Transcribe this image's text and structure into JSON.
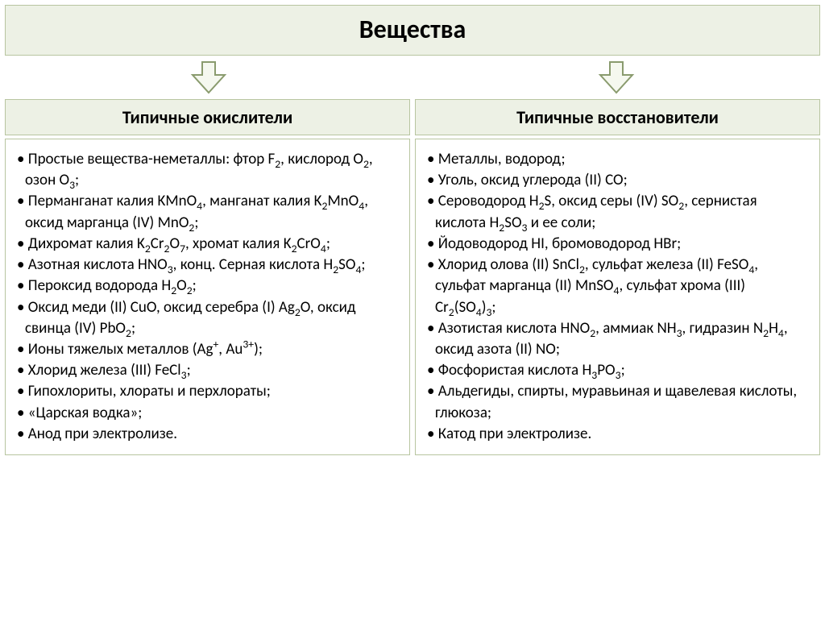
{
  "title": "Вещества",
  "left": {
    "header": "Типичные окислители",
    "items": [
      "Простые вещества-неметаллы: фтор F<sub>2</sub>, кислород O<sub>2</sub>, озон O<sub>3</sub>;",
      " Перманганат калия KMnO<sub>4</sub>, манганат калия K<sub>2</sub>MnO<sub>4</sub>, оксид марганца (IV) MnO<sub>2</sub>;",
      "Дихромат калия K<sub>2</sub>Cr<sub>2</sub>O<sub>7</sub>, хромат калия K<sub>2</sub>CrO<sub>4</sub>;",
      "Азотная кислота HNO<sub>3</sub>, конц. Серная кислота H<sub>2</sub>SO<sub>4</sub>;",
      "Пероксид водорода H<sub>2</sub>O<sub>2</sub>;",
      "Оксид меди (II) CuO, оксид серебра (I) Ag<sub>2</sub>O, оксид свинца (IV) PbO<sub>2</sub>;",
      "Ионы тяжелых металлов (Ag<sup>+</sup>, Au<sup>3+</sup>);",
      "Хлорид железа (III) FeCl<sub>3</sub>;",
      "Гипохлориты, хлораты и перхлораты;",
      "«Царская водка»;",
      "Анод при электролизе."
    ]
  },
  "right": {
    "header": "Типичные восстановители",
    "items": [
      " Металлы, водород;",
      " Уголь, оксид углерода (II) CO;",
      " Сероводород H<sub>2</sub>S, оксид серы (IV) SO<sub>2</sub>, сернистая кислота H<sub>2</sub>SO<sub>3</sub> и ее соли;",
      "Йодоводород HI, бромоводород HBr;",
      "Хлорид олова (II) SnCl<sub>2</sub>, сульфат железа (II) FeSO<sub>4</sub>, сульфат марганца (II) MnSO<sub>4</sub>, сульфат хрома (III) Cr<sub>2</sub>(SO<sub>4</sub>)<sub>3</sub>;",
      "Азотистая кислота HNO<sub>2</sub>, аммиак NH<sub>3</sub>, гидразин N<sub>2</sub>H<sub>4</sub>, оксид азота (II) NO;",
      "Фосфористая кислота H<sub>3</sub>PO<sub>3</sub>;",
      "Альдегиды, спирты, муравьиная и щавелевая кислоты, глюкоза;",
      "Катод при электролизе."
    ]
  },
  "colors": {
    "header_bg": "#edf1e5",
    "border": "#b8c5a0",
    "body_bg": "#ffffff",
    "arrow_stroke": "#8a9b6e",
    "arrow_fill": "#f5f8ef"
  }
}
